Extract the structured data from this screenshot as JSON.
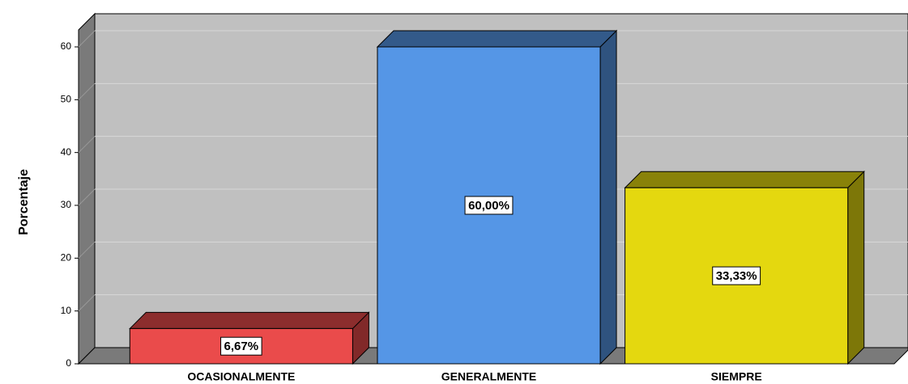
{
  "chart_data": {
    "type": "bar",
    "ylabel": "Porcentaje",
    "categories": [
      "OCASIONALMENTE",
      "GENERALMENTE",
      "SIEMPRE"
    ],
    "values": [
      6.67,
      60,
      33.33
    ],
    "value_labels": [
      "6,67%",
      "60,00%",
      "33,33%"
    ],
    "colors": [
      "#ea4b4b",
      "#5596e6",
      "#e4d80f"
    ],
    "ylim": [
      0,
      63
    ],
    "yticks": [
      0,
      10,
      20,
      30,
      40,
      50,
      60
    ],
    "grid": true
  }
}
